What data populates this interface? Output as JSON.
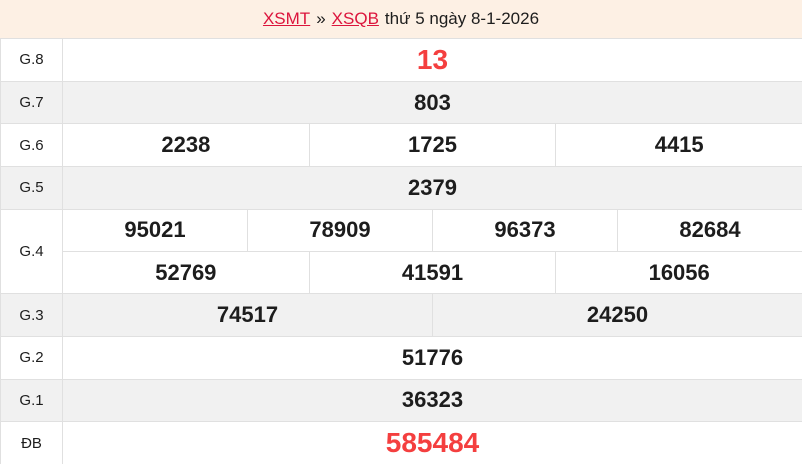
{
  "header": {
    "region_link": "XSMT",
    "separator": "»",
    "province_link": "XSQB",
    "draw_info": "thứ 5 ngày 8-1-2026"
  },
  "colors": {
    "header_bg": "#fdf0e4",
    "link_red": "#dc143c",
    "highlight_red": "#f43f3f",
    "row_alt_bg": "#f1f1f1",
    "border": "#e0e0e0",
    "text": "#1d1d1d"
  },
  "prize_table": {
    "rows": [
      {
        "name": "G.8",
        "values": [
          "13"
        ]
      },
      {
        "name": "G.7",
        "values": [
          "803"
        ]
      },
      {
        "name": "G.6",
        "values": [
          "2238",
          "1725",
          "4415"
        ]
      },
      {
        "name": "G.5",
        "values": [
          "2379"
        ]
      },
      {
        "name": "G.4",
        "line1": [
          "95021",
          "78909",
          "96373",
          "82684"
        ],
        "line2": [
          "52769",
          "41591",
          "16056"
        ]
      },
      {
        "name": "G.3",
        "values": [
          "74517",
          "24250"
        ]
      },
      {
        "name": "G.2",
        "values": [
          "51776"
        ]
      },
      {
        "name": "G.1",
        "values": [
          "36323"
        ]
      },
      {
        "name": "ĐB",
        "values": [
          "585484"
        ]
      }
    ]
  }
}
